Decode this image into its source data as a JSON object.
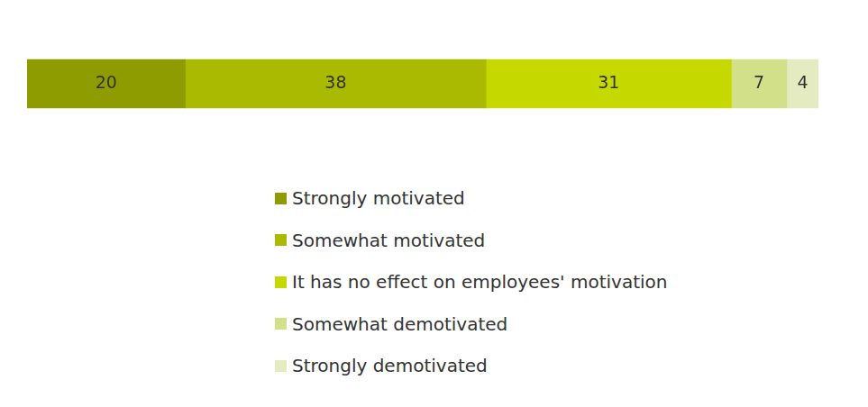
{
  "chart_data": {
    "type": "bar",
    "orientation": "horizontal",
    "stacked": true,
    "categories": [
      null
    ],
    "series": [
      {
        "name": "Strongly motivated",
        "color": "#8e9c00",
        "values": [
          20
        ]
      },
      {
        "name": "Somewhat motivated",
        "color": "#a9ba00",
        "values": [
          38
        ]
      },
      {
        "name": "It has no effect on employees' motivation",
        "color": "#c5d800",
        "values": [
          31
        ]
      },
      {
        "name": "Somewhat demotivated",
        "color": "#d3e08a",
        "values": [
          7
        ]
      },
      {
        "name": "Strongly demotivated",
        "color": "#e4ebc0",
        "values": [
          4
        ]
      }
    ],
    "xlim": [
      0,
      100
    ],
    "grid": false,
    "tick_labels": false,
    "data_labels": true,
    "legend": "bottom"
  }
}
